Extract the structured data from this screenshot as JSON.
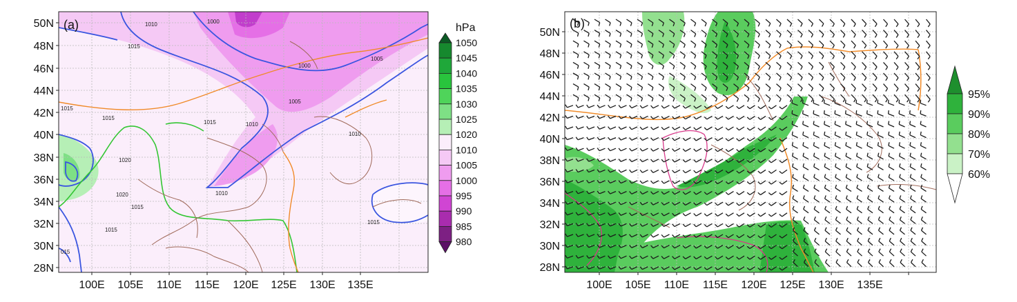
{
  "panel_a": {
    "label": "(a)",
    "lat_labels": [
      "50N",
      "48N",
      "46N",
      "44N",
      "42N",
      "40N",
      "38N",
      "36N",
      "34N",
      "32N",
      "30N",
      "28N"
    ],
    "lon_labels": [
      "100E",
      "105E",
      "110E",
      "115E",
      "120E",
      "125E",
      "130E",
      "135E"
    ],
    "isobar_labels": [
      "1010",
      "1000",
      "1015",
      "1000",
      "1005",
      "1015",
      "1005",
      "1015",
      "1010",
      "1015",
      "1020",
      "1010",
      "1020",
      "1015",
      "1010",
      "1015",
      "1015",
      "015"
    ],
    "colorbar": {
      "unit": "hPa",
      "levels": [
        "1050",
        "1045",
        "1040",
        "1035",
        "1030",
        "1025",
        "1020",
        "1010",
        "1005",
        "1000",
        "995",
        "990",
        "985",
        "980"
      ],
      "colors": [
        "#0b5a24",
        "#16892e",
        "#1fa83a",
        "#29c43d",
        "#4fd45a",
        "#7ee085",
        "#b6efb6",
        "#fbeefb",
        "#f5c9f5",
        "#ef9cef",
        "#e56fe6",
        "#d045d3",
        "#a92cae",
        "#7d2083",
        "#5c1066"
      ]
    }
  },
  "panel_b": {
    "label": "(b)",
    "lat_labels": [
      "50N",
      "48N",
      "46N",
      "44N",
      "42N",
      "40N",
      "38N",
      "36N",
      "34N",
      "32N",
      "30N",
      "28N"
    ],
    "lon_labels": [
      "100E",
      "105E",
      "110E",
      "115E",
      "120E",
      "125E",
      "130E",
      "135E"
    ],
    "colorbar": {
      "levels": [
        "95%",
        "90%",
        "80%",
        "70%",
        "60%"
      ],
      "colors": [
        "#1e8f2e",
        "#2fb23c",
        "#5acc5e",
        "#93e08f",
        "#caf2c6",
        "#ffffff"
      ]
    }
  }
}
